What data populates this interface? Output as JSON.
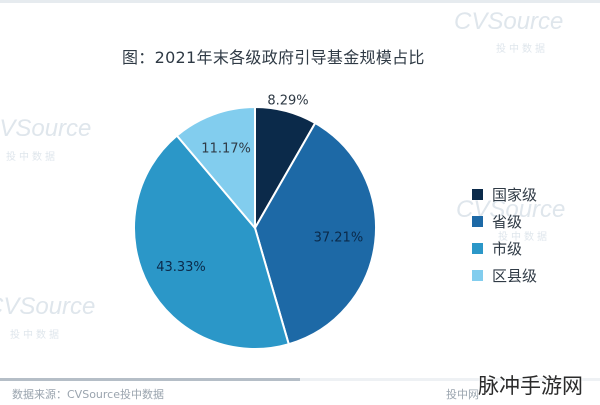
{
  "title": "图：2021年末各级政府引导基金规模占比",
  "watermark": {
    "brand": "CVSource",
    "sub": "投中数据"
  },
  "chart_data": {
    "type": "pie",
    "title": "图：2021年末各级政府引导基金规模占比",
    "categories": [
      "国家级",
      "省级",
      "市级",
      "区县级"
    ],
    "values": [
      8.29,
      37.21,
      43.33,
      11.17
    ],
    "labels": [
      "8.29%",
      "37.21%",
      "43.33%",
      "11.17%"
    ],
    "colors": [
      "#0b2a4a",
      "#1d69a6",
      "#2b97c8",
      "#82cdee"
    ],
    "legend": "right"
  },
  "footer": {
    "source": "数据来源：CVSource投中数据",
    "right": "投中网"
  },
  "site_watermark": "脉冲手游网"
}
